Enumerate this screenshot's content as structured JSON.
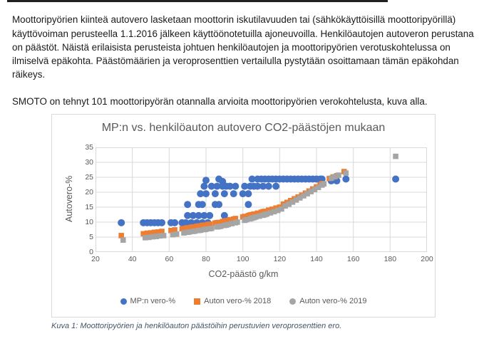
{
  "doc": {
    "paragraph1": "Moottoripyörien kiinteä autovero lasketaan moottorin iskutilavuuden tai (sähkökäyttöisillä moottoripyörillä) käyttövoiman perusteella 1.1.2016 jälkeen käyttöönotetuilla ajoneuvoilla. Henkilöautojen autoveron perustana on päästöt. Näistä erilaisista perusteista johtuen henkilöautojen ja moottoripyörien verotuskohtelussa on ilmiselvä epäkohta. Päästömäärien ja veroprosenttien vertailulla pystytään osoittamaan tämän epäkohdan räikeys.",
    "paragraph2": "SMOTO on tehnyt 101 moottoripyörän otannalla arvioita moottoripyörien verokohtelusta, kuva alla.",
    "caption": "Kuva 1: Moottoripyörien ja henkilöauton päästöihin perustuvien veroprosenttien ero."
  },
  "colors": {
    "mp_blue": "#4472C4",
    "car_2018_orange": "#ED7D31",
    "car_2019_gray": "#A5A5A5",
    "axis_text": "#595959",
    "gridline": "#D9D9D9",
    "caption_text": "#44546A"
  },
  "chart_data": {
    "type": "scatter",
    "title": "MP:n vs. henkilöauton autovero CO2-päästöjen mukaan",
    "xlabel": "CO2-päästö g/km",
    "ylabel": "Autovero-%",
    "xlim": [
      20,
      200
    ],
    "ylim": [
      0,
      35
    ],
    "xticks": [
      20,
      40,
      60,
      80,
      100,
      120,
      140,
      160,
      180,
      200
    ],
    "yticks": [
      0,
      5,
      10,
      15,
      20,
      25,
      30,
      35
    ],
    "grid": true,
    "legend_position": "bottom",
    "series": [
      {
        "name": "MP:n vero-%",
        "color": "#4472C4",
        "marker": "circle",
        "legend_marker": "circle",
        "points": [
          [
            34,
            9.8
          ],
          [
            46,
            9.8
          ],
          [
            48,
            9.8
          ],
          [
            50,
            9.8
          ],
          [
            52,
            9.8
          ],
          [
            54,
            9.8
          ],
          [
            56,
            9.8
          ],
          [
            61,
            9.8
          ],
          [
            63,
            9.8
          ],
          [
            67,
            9.8
          ],
          [
            69,
            9.8
          ],
          [
            72,
            9.8
          ],
          [
            75,
            9.8
          ],
          [
            78,
            9.8
          ],
          [
            81,
            9.8
          ],
          [
            70,
            12.2
          ],
          [
            73,
            12.2
          ],
          [
            76,
            12.2
          ],
          [
            79,
            12.2
          ],
          [
            82,
            12.2
          ],
          [
            90,
            12.2
          ],
          [
            70,
            15.9
          ],
          [
            76,
            15.9
          ],
          [
            78,
            15.9
          ],
          [
            85,
            15.9
          ],
          [
            87,
            15.9
          ],
          [
            103,
            15.9
          ],
          [
            77,
            19.5
          ],
          [
            80,
            19.5
          ],
          [
            85,
            19.5
          ],
          [
            90,
            19.5
          ],
          [
            95,
            19.5
          ],
          [
            100,
            19.5
          ],
          [
            103,
            19.5
          ],
          [
            79,
            22
          ],
          [
            83,
            22
          ],
          [
            86,
            22
          ],
          [
            89,
            22
          ],
          [
            91,
            22
          ],
          [
            93,
            22
          ],
          [
            96,
            22
          ],
          [
            101,
            22
          ],
          [
            104,
            22
          ],
          [
            106,
            22
          ],
          [
            108,
            22
          ],
          [
            111,
            22
          ],
          [
            114,
            22
          ],
          [
            118,
            22
          ],
          [
            80,
            24
          ],
          [
            87,
            24.4
          ],
          [
            89,
            23.6
          ],
          [
            105,
            24.4
          ],
          [
            108,
            24.4
          ],
          [
            110,
            24.4
          ],
          [
            112,
            24.4
          ],
          [
            114,
            24.4
          ],
          [
            116,
            24.4
          ],
          [
            118,
            24.4
          ],
          [
            120,
            24.4
          ],
          [
            122,
            24.4
          ],
          [
            124,
            24.4
          ],
          [
            126,
            24.4
          ],
          [
            128,
            24.4
          ],
          [
            130,
            24.4
          ],
          [
            132,
            24.4
          ],
          [
            134,
            24.4
          ],
          [
            136,
            24.4
          ],
          [
            138,
            24.4
          ],
          [
            140,
            24.4
          ],
          [
            142,
            24.4
          ],
          [
            143,
            24.4
          ],
          [
            148,
            23.8
          ],
          [
            151,
            23.8
          ],
          [
            156,
            24.4
          ],
          [
            183,
            24.4
          ]
        ]
      },
      {
        "name": "Auton vero-% 2018",
        "color": "#ED7D31",
        "marker": "square",
        "legend_marker": "square",
        "points": [
          [
            34,
            5.5
          ],
          [
            46,
            6.1
          ],
          [
            48,
            6.3
          ],
          [
            50,
            6.4
          ],
          [
            52,
            6.6
          ],
          [
            54,
            6.7
          ],
          [
            56,
            6.9
          ],
          [
            61,
            7.2
          ],
          [
            63,
            7.4
          ],
          [
            67,
            7.8
          ],
          [
            69,
            8.0
          ],
          [
            70,
            8.1
          ],
          [
            72,
            8.3
          ],
          [
            73,
            8.4
          ],
          [
            75,
            8.6
          ],
          [
            76,
            8.7
          ],
          [
            78,
            8.9
          ],
          [
            79,
            9.0
          ],
          [
            81,
            9.2
          ],
          [
            82,
            9.3
          ],
          [
            85,
            9.7
          ],
          [
            86,
            9.8
          ],
          [
            87,
            9.9
          ],
          [
            89,
            10.2
          ],
          [
            90,
            10.3
          ],
          [
            91,
            10.5
          ],
          [
            93,
            10.8
          ],
          [
            95,
            11.0
          ],
          [
            96,
            11.2
          ],
          [
            100,
            11.7
          ],
          [
            101,
            11.9
          ],
          [
            103,
            12.2
          ],
          [
            104,
            12.4
          ],
          [
            105,
            12.5
          ],
          [
            106,
            12.7
          ],
          [
            108,
            13.0
          ],
          [
            110,
            13.3
          ],
          [
            111,
            13.5
          ],
          [
            112,
            13.6
          ],
          [
            114,
            14.0
          ],
          [
            116,
            14.3
          ],
          [
            118,
            14.7
          ],
          [
            120,
            15.0
          ],
          [
            122,
            16.0
          ],
          [
            124,
            16.6
          ],
          [
            126,
            17.2
          ],
          [
            128,
            17.8
          ],
          [
            130,
            18.4
          ],
          [
            132,
            19.0
          ],
          [
            134,
            19.7
          ],
          [
            136,
            20.4
          ],
          [
            138,
            21.1
          ],
          [
            140,
            21.8
          ],
          [
            142,
            22.5
          ],
          [
            143,
            22.9
          ],
          [
            147,
            24.6
          ],
          [
            149,
            25.1
          ],
          [
            151,
            25.5
          ],
          [
            155,
            26.9
          ]
        ]
      },
      {
        "name": "Auton vero-% 2019",
        "color": "#A5A5A5",
        "marker": "square",
        "legend_marker": "circle",
        "points": [
          [
            35,
            4.0
          ],
          [
            47,
            4.8
          ],
          [
            49,
            4.9
          ],
          [
            51,
            5.1
          ],
          [
            53,
            5.2
          ],
          [
            55,
            5.4
          ],
          [
            57,
            5.5
          ],
          [
            62,
            5.8
          ],
          [
            64,
            6.0
          ],
          [
            68,
            6.4
          ],
          [
            70,
            6.6
          ],
          [
            71,
            6.7
          ],
          [
            73,
            6.9
          ],
          [
            74,
            7.0
          ],
          [
            76,
            7.2
          ],
          [
            77,
            7.3
          ],
          [
            79,
            7.5
          ],
          [
            80,
            7.6
          ],
          [
            82,
            7.8
          ],
          [
            83,
            7.9
          ],
          [
            86,
            8.4
          ],
          [
            87,
            8.5
          ],
          [
            88,
            8.6
          ],
          [
            90,
            8.9
          ],
          [
            91,
            9.0
          ],
          [
            92,
            9.2
          ],
          [
            94,
            9.5
          ],
          [
            96,
            9.8
          ],
          [
            97,
            10.0
          ],
          [
            101,
            10.6
          ],
          [
            102,
            10.8
          ],
          [
            104,
            11.1
          ],
          [
            105,
            11.3
          ],
          [
            106,
            11.5
          ],
          [
            107,
            11.7
          ],
          [
            109,
            12.0
          ],
          [
            111,
            12.3
          ],
          [
            112,
            12.5
          ],
          [
            113,
            12.7
          ],
          [
            115,
            13.1
          ],
          [
            117,
            13.5
          ],
          [
            119,
            13.9
          ],
          [
            121,
            14.4
          ],
          [
            123,
            15.4
          ],
          [
            125,
            16.0
          ],
          [
            127,
            16.7
          ],
          [
            129,
            17.4
          ],
          [
            131,
            18.1
          ],
          [
            133,
            18.8
          ],
          [
            135,
            19.5
          ],
          [
            137,
            20.2
          ],
          [
            139,
            20.9
          ],
          [
            141,
            21.6
          ],
          [
            143,
            22.4
          ],
          [
            144,
            22.8
          ],
          [
            148,
            24.7
          ],
          [
            150,
            25.2
          ],
          [
            152,
            25.7
          ],
          [
            156,
            26.4
          ],
          [
            183,
            32.0
          ]
        ]
      }
    ]
  },
  "chart": {
    "legend": [
      {
        "label": "MP:n vero-%"
      },
      {
        "label": "Auton vero-% 2018"
      },
      {
        "label": "Auton vero-% 2019"
      }
    ]
  }
}
